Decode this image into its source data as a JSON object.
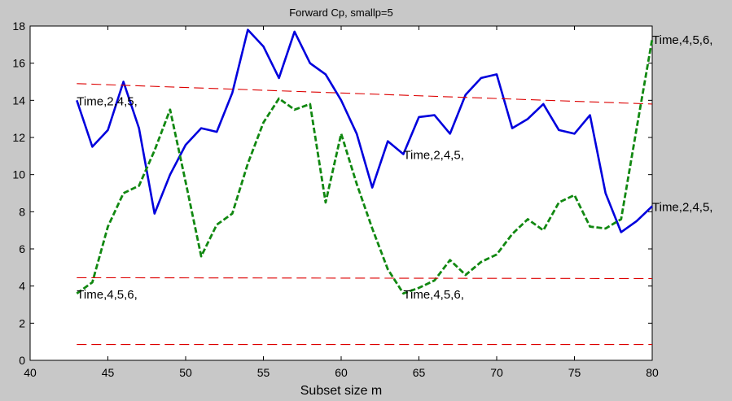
{
  "chart_data": {
    "type": "line",
    "title": "Forward Cp, smallp=5",
    "xlabel": "Subset size m",
    "ylabel": "",
    "xlim": [
      40,
      80
    ],
    "ylim": [
      0,
      18
    ],
    "xticks": [
      40,
      45,
      50,
      55,
      60,
      65,
      70,
      75,
      80
    ],
    "yticks": [
      0,
      2,
      4,
      6,
      8,
      10,
      12,
      14,
      16,
      18
    ],
    "grid": false,
    "series": [
      {
        "style": "solid",
        "color": "#0000dd",
        "x": [
          43,
          44,
          45,
          46,
          47,
          48,
          49,
          50,
          51,
          52,
          53,
          54,
          55,
          56,
          57,
          58,
          59,
          60,
          61,
          62,
          63,
          64,
          65,
          66,
          67,
          68,
          69,
          70,
          71,
          72,
          73,
          74,
          75,
          76,
          77,
          78,
          79,
          80
        ],
        "values": [
          14.0,
          11.5,
          12.4,
          15.0,
          12.5,
          7.9,
          10.0,
          11.6,
          12.5,
          12.3,
          14.4,
          17.8,
          16.9,
          15.2,
          17.7,
          16.0,
          15.4,
          14.0,
          12.2,
          9.3,
          11.8,
          11.1,
          13.1,
          13.2,
          12.2,
          14.3,
          15.2,
          15.4,
          12.5,
          13.0,
          13.8,
          12.4,
          12.2,
          13.2,
          9.0,
          6.9,
          7.5,
          8.3
        ]
      },
      {
        "style": "dashed",
        "color": "#118811",
        "x": [
          43,
          44,
          45,
          46,
          47,
          48,
          49,
          50,
          51,
          52,
          53,
          54,
          55,
          56,
          57,
          58,
          59,
          60,
          61,
          62,
          63,
          64,
          65,
          66,
          67,
          68,
          69,
          70,
          71,
          72,
          73,
          74,
          75,
          76,
          77,
          78,
          79,
          80
        ],
        "values": [
          3.6,
          4.2,
          7.2,
          9.0,
          9.4,
          11.3,
          13.5,
          9.6,
          5.6,
          7.3,
          7.9,
          10.6,
          12.8,
          14.1,
          13.5,
          13.8,
          8.5,
          12.2,
          9.5,
          7.1,
          4.9,
          3.6,
          3.9,
          4.3,
          5.4,
          4.6,
          5.3,
          5.7,
          6.8,
          7.6,
          7.0,
          8.5,
          8.9,
          7.2,
          7.1,
          7.6,
          12.5,
          17.3
        ]
      },
      {
        "style": "dashed-thin",
        "color": "#dd0000",
        "x": [
          43,
          80
        ],
        "values": [
          14.9,
          13.8
        ]
      },
      {
        "style": "dashed-thin",
        "color": "#dd0000",
        "x": [
          43,
          80
        ],
        "values": [
          4.45,
          4.4
        ]
      },
      {
        "style": "dashed-thin",
        "color": "#dd0000",
        "x": [
          43,
          80
        ],
        "values": [
          0.85,
          0.85
        ]
      }
    ],
    "annotations": [
      {
        "text": "Time,2,4,5,",
        "x": 43,
        "y": 14.0
      },
      {
        "text": "Time,4,5,6,",
        "x": 43,
        "y": 3.6
      },
      {
        "text": "Time,2,4,5,",
        "x": 64,
        "y": 11.1
      },
      {
        "text": "Time,4,5,6,",
        "x": 64,
        "y": 3.6
      },
      {
        "text": "Time,4,5,6,",
        "x": 80,
        "y": 17.3
      },
      {
        "text": "Time,2,4,5,",
        "x": 80,
        "y": 8.3
      }
    ]
  }
}
